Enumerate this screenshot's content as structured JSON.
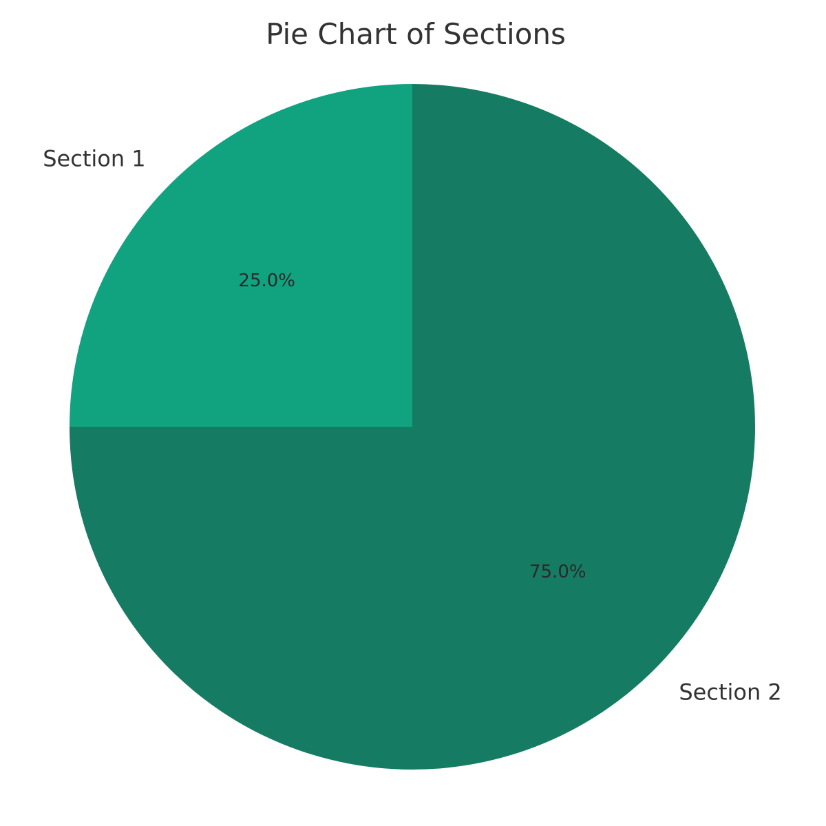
{
  "chart_data": {
    "type": "pie",
    "title": "Pie Chart of Sections",
    "categories": [
      "Section 1",
      "Section 2"
    ],
    "values": [
      25,
      75
    ],
    "percent_labels": [
      "25.0%",
      "75.0%"
    ],
    "colors": [
      "#11a37f",
      "#167b63"
    ],
    "start_angle_deg": 90,
    "direction": "counterclockwise",
    "legend": "none"
  }
}
